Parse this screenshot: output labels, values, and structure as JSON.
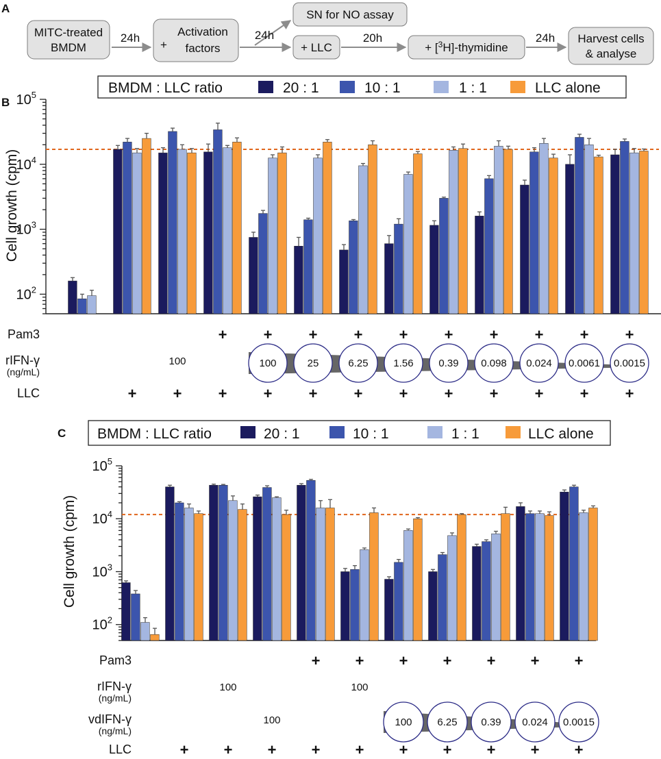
{
  "colors": {
    "r20": "#1b1b5e",
    "r10": "#3c55ad",
    "r1": "#a4b6e0",
    "alone": "#f79b3a",
    "refline": "#e0661c",
    "arrow": "#8c8c8c",
    "wedge": "#666666"
  },
  "panelA": {
    "label": "A",
    "boxes": {
      "bmdm": [
        "MITC-treated",
        "BMDM"
      ],
      "activation": [
        "Activation",
        "factors"
      ],
      "activation_plus": "+",
      "sn": "SN for NO assay",
      "llc": "+ LLC",
      "thymidine": {
        "pre": "+ [",
        "sup": "3",
        "post": "H]-thymidine"
      },
      "harvest": [
        "Harvest cells",
        "& analyse"
      ]
    },
    "arrows": {
      "a1": "24h",
      "a2": "24h",
      "a3": "20h",
      "a4": "24h"
    }
  },
  "legend": {
    "title": "BMDM : LLC ratio",
    "items": [
      {
        "label": "20 : 1",
        "color": "#1b1b5e"
      },
      {
        "label": "10 : 1",
        "color": "#3c55ad"
      },
      {
        "label": "1 : 1",
        "color": "#a4b6e0"
      },
      {
        "label": "LLC alone",
        "color": "#f79b3a"
      }
    ]
  },
  "chart_data": [
    {
      "panel": "B",
      "type": "bar",
      "yscale": "log",
      "ylabel": "Cell growth (cpm)",
      "ylim": [
        50,
        100000
      ],
      "yticks": [
        {
          "base": "10",
          "exp": "2"
        },
        {
          "base": "10",
          "exp": "3"
        },
        {
          "base": "10",
          "exp": "4"
        },
        {
          "base": "10",
          "exp": "5"
        }
      ],
      "reference_line": 17000,
      "series_names": [
        "20 : 1",
        "10 : 1",
        "1 : 1",
        "LLC alone"
      ],
      "groups": [
        {
          "values": [
            160,
            85,
            95
          ],
          "errors": [
            20,
            15,
            20
          ]
        },
        {
          "values": [
            17000,
            22000,
            15000,
            25000
          ],
          "errors": [
            2500,
            3000,
            2500,
            5000
          ]
        },
        {
          "values": [
            15000,
            32000,
            17000,
            15000
          ],
          "errors": [
            3000,
            4000,
            3000,
            2500
          ]
        },
        {
          "values": [
            15500,
            34000,
            18000,
            22000
          ],
          "errors": [
            5000,
            9000,
            1500,
            3500
          ]
        },
        {
          "values": [
            750,
            1750,
            12500,
            15000
          ],
          "errors": [
            150,
            200,
            1500,
            3500
          ]
        },
        {
          "values": [
            550,
            1400,
            12500,
            22000
          ],
          "errors": [
            200,
            80,
            1500,
            2000
          ]
        },
        {
          "values": [
            480,
            1350,
            9500,
            20000
          ],
          "errors": [
            100,
            60,
            800,
            3000
          ]
        },
        {
          "values": [
            600,
            1200,
            7000,
            14500
          ],
          "errors": [
            200,
            250,
            600,
            1200
          ]
        },
        {
          "values": [
            1150,
            3000,
            16500,
            17500
          ],
          "errors": [
            200,
            120,
            2000,
            3000
          ]
        },
        {
          "values": [
            1600,
            6000,
            19000,
            17000
          ],
          "errors": [
            250,
            700,
            4000,
            2000
          ]
        },
        {
          "values": [
            4800,
            15500,
            21000,
            12500
          ],
          "errors": [
            900,
            2500,
            4000,
            1800
          ]
        },
        {
          "values": [
            10000,
            26000,
            20000,
            13000
          ],
          "errors": [
            4000,
            3000,
            5000,
            800
          ]
        },
        {
          "values": [
            14000,
            22500,
            15000,
            16000
          ],
          "errors": [
            3000,
            2000,
            2500,
            1200
          ]
        }
      ],
      "rows": [
        {
          "label": "Pam3",
          "cells": [
            "",
            "",
            "",
            "+",
            "+",
            "+",
            "+",
            "+",
            "+",
            "+",
            "+",
            "+",
            "+"
          ]
        },
        {
          "label": "rIFN-γ",
          "sublabel": "(ng/mL)",
          "cells": [
            "",
            "",
            "100",
            "",
            "",
            "",
            "",
            "",
            "",
            "",
            "",
            "",
            ""
          ],
          "circles": {
            "start": 4,
            "values": [
              "100",
              "25",
              "6.25",
              "1.56",
              "0.39",
              "0.098",
              "0.024",
              "0.0061",
              "0.0015"
            ]
          }
        },
        {
          "label": "LLC",
          "cells": [
            "",
            "+",
            "+",
            "+",
            "+",
            "+",
            "+",
            "+",
            "+",
            "+",
            "+",
            "+",
            "+"
          ]
        }
      ]
    },
    {
      "panel": "C",
      "type": "bar",
      "yscale": "log",
      "ylabel": "Cell growth (cpm)",
      "ylim": [
        50,
        100000
      ],
      "yticks": [
        {
          "base": "10",
          "exp": "2"
        },
        {
          "base": "10",
          "exp": "3"
        },
        {
          "base": "10",
          "exp": "4"
        },
        {
          "base": "10",
          "exp": "5"
        }
      ],
      "reference_line": 12000,
      "series_names": [
        "20 : 1",
        "10 : 1",
        "1 : 1",
        "LLC alone"
      ],
      "groups": [
        {
          "values": [
            620,
            380,
            110,
            65
          ],
          "errors": [
            50,
            60,
            25,
            20
          ]
        },
        {
          "values": [
            40000,
            20000,
            16000,
            12500
          ],
          "errors": [
            3000,
            1000,
            3000,
            1500
          ]
        },
        {
          "values": [
            43000,
            43000,
            22000,
            15000
          ],
          "errors": [
            2000,
            1500,
            5000,
            4000
          ]
        },
        {
          "values": [
            26000,
            39000,
            25000,
            12000
          ],
          "errors": [
            2000,
            3000,
            1000,
            2500
          ]
        },
        {
          "values": [
            43000,
            53000,
            16000,
            16000
          ],
          "errors": [
            3000,
            2500,
            6000,
            7000
          ]
        },
        {
          "values": [
            1000,
            1100,
            2600,
            13000
          ],
          "errors": [
            150,
            200,
            200,
            3000
          ]
        },
        {
          "values": [
            720,
            1500,
            6000,
            10000
          ],
          "errors": [
            80,
            200,
            400,
            500
          ]
        },
        {
          "values": [
            1000,
            2100,
            4800,
            12000
          ],
          "errors": [
            100,
            200,
            600,
            500
          ]
        },
        {
          "values": [
            3000,
            3700,
            5200,
            12500
          ],
          "errors": [
            300,
            300,
            600,
            4000
          ]
        },
        {
          "values": [
            17000,
            12500,
            12500,
            11500
          ],
          "errors": [
            3000,
            1500,
            1500,
            2000
          ]
        },
        {
          "values": [
            32000,
            40000,
            13000,
            16000
          ],
          "errors": [
            3000,
            3000,
            1500,
            1500
          ]
        }
      ],
      "rows": [
        {
          "label": "Pam3",
          "cells": [
            "",
            "",
            "",
            "",
            "+",
            "+",
            "+",
            "+",
            "+",
            "+",
            "+"
          ]
        },
        {
          "label": "rIFN-γ",
          "sublabel": "(ng/mL)",
          "cells": [
            "",
            "",
            "100",
            "",
            "",
            "100",
            "",
            "",
            "",
            "",
            ""
          ]
        },
        {
          "label": "vdIFN-γ",
          "sublabel": "(ng/mL)",
          "cells": [
            "",
            "",
            "",
            "100",
            "",
            "",
            "",
            "",
            "",
            "",
            ""
          ],
          "circles": {
            "start": 6,
            "values": [
              "100",
              "6.25",
              "0.39",
              "0.024",
              "0.0015"
            ]
          }
        },
        {
          "label": "LLC",
          "cells": [
            "",
            "+",
            "+",
            "+",
            "+",
            "+",
            "+",
            "+",
            "+",
            "+",
            "+"
          ]
        }
      ]
    }
  ]
}
